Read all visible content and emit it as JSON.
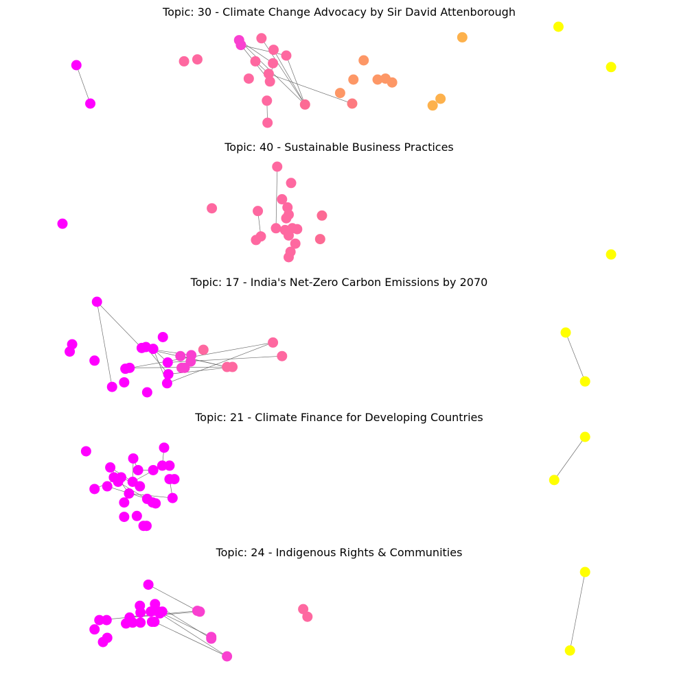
{
  "colors": {
    "magenta": "#ff00ff",
    "pink_magenta": "#f940d0",
    "pink": "#fe68a0",
    "pink_coral": "#fc6a94",
    "coral": "#fd7a80",
    "orange": "#fd9766",
    "light_orange": "#fdb14c",
    "yellow": "#ffff00"
  },
  "chart_data": [
    {
      "type": "scatter",
      "title": "Topic: 30 - Climate Change Advocacy by Sir David Attenborough",
      "xlim": [
        0,
        100
      ],
      "ylim": [
        0,
        100
      ],
      "grid": false,
      "nodes": [
        {
          "id": "a1",
          "x": 6.5,
          "y": 60,
          "color": "magenta"
        },
        {
          "id": "a2",
          "x": 8.8,
          "y": 20,
          "color": "magenta"
        },
        {
          "id": "a3",
          "x": 24.3,
          "y": 64,
          "color": "pink"
        },
        {
          "id": "a4",
          "x": 26.5,
          "y": 66,
          "color": "pink"
        },
        {
          "id": "a5",
          "x": 33.4,
          "y": 86,
          "color": "pink_magenta"
        },
        {
          "id": "a6",
          "x": 33.7,
          "y": 81,
          "color": "pink_magenta"
        },
        {
          "id": "a7",
          "x": 37.1,
          "y": 88,
          "color": "pink"
        },
        {
          "id": "a8",
          "x": 39.1,
          "y": 76,
          "color": "pink"
        },
        {
          "id": "a9",
          "x": 36.1,
          "y": 64,
          "color": "pink"
        },
        {
          "id": "a10",
          "x": 39.0,
          "y": 62,
          "color": "pink"
        },
        {
          "id": "a11",
          "x": 41.2,
          "y": 70,
          "color": "pink"
        },
        {
          "id": "a12",
          "x": 35.0,
          "y": 46,
          "color": "pink"
        },
        {
          "id": "a13",
          "x": 38.3,
          "y": 51,
          "color": "pink"
        },
        {
          "id": "a14",
          "x": 38.5,
          "y": 43,
          "color": "pink"
        },
        {
          "id": "a15",
          "x": 38.0,
          "y": 23,
          "color": "pink"
        },
        {
          "id": "a16",
          "x": 38.1,
          "y": 0,
          "color": "pink"
        },
        {
          "id": "a17",
          "x": 44.3,
          "y": 19,
          "color": "pink_coral"
        },
        {
          "id": "a18",
          "x": 50.1,
          "y": 31,
          "color": "orange"
        },
        {
          "id": "a19",
          "x": 52.1,
          "y": 20,
          "color": "coral"
        },
        {
          "id": "a20",
          "x": 52.3,
          "y": 45,
          "color": "orange"
        },
        {
          "id": "a21",
          "x": 54.0,
          "y": 65,
          "color": "orange"
        },
        {
          "id": "a22",
          "x": 56.3,
          "y": 45,
          "color": "orange"
        },
        {
          "id": "a23",
          "x": 57.6,
          "y": 46,
          "color": "orange"
        },
        {
          "id": "a24",
          "x": 58.7,
          "y": 42,
          "color": "orange"
        },
        {
          "id": "a25",
          "x": 70.3,
          "y": 89,
          "color": "light_orange"
        },
        {
          "id": "a26",
          "x": 65.4,
          "y": 18,
          "color": "light_orange"
        },
        {
          "id": "a27",
          "x": 66.7,
          "y": 25,
          "color": "light_orange"
        },
        {
          "id": "a28",
          "x": 86.2,
          "y": 100,
          "color": "yellow"
        },
        {
          "id": "a29",
          "x": 94.9,
          "y": 58,
          "color": "yellow"
        }
      ],
      "edges": [
        [
          "a1",
          "a2"
        ],
        [
          "a5",
          "a17"
        ],
        [
          "a5",
          "a10"
        ],
        [
          "a6",
          "a11"
        ],
        [
          "a6",
          "a14"
        ],
        [
          "a7",
          "a17"
        ],
        [
          "a8",
          "a17"
        ],
        [
          "a11",
          "a17"
        ],
        [
          "a9",
          "a13"
        ],
        [
          "a10",
          "a14"
        ],
        [
          "a15",
          "a16"
        ],
        [
          "a13",
          "a19"
        ]
      ]
    },
    {
      "type": "scatter",
      "title": "Topic: 40 - Sustainable Business Practices",
      "xlim": [
        0,
        100
      ],
      "ylim": [
        0,
        100
      ],
      "grid": false,
      "nodes": [
        {
          "id": "b1",
          "x": 4.2,
          "y": 37,
          "color": "magenta"
        },
        {
          "id": "b2",
          "x": 28.9,
          "y": 54,
          "color": "pink"
        },
        {
          "id": "b3",
          "x": 39.7,
          "y": 100,
          "color": "pink"
        },
        {
          "id": "b4",
          "x": 42.0,
          "y": 82,
          "color": "pink"
        },
        {
          "id": "b5",
          "x": 40.5,
          "y": 64,
          "color": "pink"
        },
        {
          "id": "b6",
          "x": 41.4,
          "y": 55,
          "color": "pink"
        },
        {
          "id": "b7",
          "x": 36.5,
          "y": 51,
          "color": "pink"
        },
        {
          "id": "b8",
          "x": 41.6,
          "y": 47,
          "color": "pink"
        },
        {
          "id": "b9",
          "x": 41.2,
          "y": 43,
          "color": "pink"
        },
        {
          "id": "b10",
          "x": 39.5,
          "y": 32,
          "color": "pink"
        },
        {
          "id": "b11",
          "x": 42.2,
          "y": 32,
          "color": "pink"
        },
        {
          "id": "b12",
          "x": 43.0,
          "y": 31,
          "color": "pink"
        },
        {
          "id": "b13",
          "x": 41.0,
          "y": 30,
          "color": "pink"
        },
        {
          "id": "b14",
          "x": 41.6,
          "y": 24,
          "color": "pink"
        },
        {
          "id": "b15",
          "x": 36.2,
          "y": 19,
          "color": "pink"
        },
        {
          "id": "b16",
          "x": 37.0,
          "y": 23,
          "color": "pink"
        },
        {
          "id": "b17",
          "x": 42.7,
          "y": 15,
          "color": "pink"
        },
        {
          "id": "b18",
          "x": 41.9,
          "y": 6,
          "color": "pink"
        },
        {
          "id": "b19",
          "x": 41.6,
          "y": 0,
          "color": "pink"
        },
        {
          "id": "b20",
          "x": 47.1,
          "y": 46,
          "color": "pink_coral"
        },
        {
          "id": "b21",
          "x": 46.8,
          "y": 20,
          "color": "pink_coral"
        },
        {
          "id": "b22",
          "x": 94.9,
          "y": 3,
          "color": "yellow"
        }
      ],
      "edges": [
        [
          "b3",
          "b10"
        ],
        [
          "b7",
          "b16"
        ],
        [
          "b6",
          "b9"
        ]
      ]
    },
    {
      "type": "scatter",
      "title": "Topic: 17 - India's Net-Zero Carbon Emissions by 2070",
      "xlim": [
        0,
        100
      ],
      "ylim": [
        0,
        100
      ],
      "grid": false,
      "nodes": [
        {
          "id": "c1",
          "x": 9.9,
          "y": 100,
          "color": "magenta"
        },
        {
          "id": "c2",
          "x": 5.8,
          "y": 53,
          "color": "magenta"
        },
        {
          "id": "c3",
          "x": 5.4,
          "y": 45,
          "color": "magenta"
        },
        {
          "id": "c4",
          "x": 9.5,
          "y": 35,
          "color": "magenta"
        },
        {
          "id": "c5",
          "x": 12.4,
          "y": 6,
          "color": "magenta"
        },
        {
          "id": "c6",
          "x": 14.4,
          "y": 11,
          "color": "magenta"
        },
        {
          "id": "c7",
          "x": 14.6,
          "y": 26,
          "color": "magenta"
        },
        {
          "id": "c8",
          "x": 15.3,
          "y": 27,
          "color": "magenta"
        },
        {
          "id": "c9",
          "x": 17.3,
          "y": 49,
          "color": "magenta"
        },
        {
          "id": "c10",
          "x": 18.0,
          "y": 50,
          "color": "magenta"
        },
        {
          "id": "c11",
          "x": 19.2,
          "y": 48,
          "color": "magenta"
        },
        {
          "id": "c12",
          "x": 18.2,
          "y": 0,
          "color": "magenta"
        },
        {
          "id": "c13",
          "x": 20.8,
          "y": 61,
          "color": "magenta"
        },
        {
          "id": "c14",
          "x": 21.6,
          "y": 33,
          "color": "magenta"
        },
        {
          "id": "c15",
          "x": 21.7,
          "y": 20,
          "color": "magenta"
        },
        {
          "id": "c16",
          "x": 21.5,
          "y": 10,
          "color": "magenta"
        },
        {
          "id": "c17",
          "x": 23.7,
          "y": 40,
          "color": "pink_magenta"
        },
        {
          "id": "c18",
          "x": 23.9,
          "y": 27,
          "color": "pink_magenta"
        },
        {
          "id": "c19",
          "x": 24.4,
          "y": 27,
          "color": "pink_magenta"
        },
        {
          "id": "c20",
          "x": 25.5,
          "y": 41,
          "color": "pink_magenta"
        },
        {
          "id": "c21",
          "x": 25.4,
          "y": 34,
          "color": "pink_magenta"
        },
        {
          "id": "c22",
          "x": 27.5,
          "y": 47,
          "color": "pink"
        },
        {
          "id": "c23",
          "x": 31.4,
          "y": 28,
          "color": "pink"
        },
        {
          "id": "c24",
          "x": 32.3,
          "y": 28,
          "color": "pink"
        },
        {
          "id": "c25",
          "x": 39.0,
          "y": 55,
          "color": "pink"
        },
        {
          "id": "c26",
          "x": 40.5,
          "y": 40,
          "color": "pink"
        },
        {
          "id": "c27",
          "x": 87.4,
          "y": 66,
          "color": "yellow"
        },
        {
          "id": "c28",
          "x": 90.6,
          "y": 12,
          "color": "yellow"
        }
      ],
      "edges": [
        [
          "c1",
          "c9"
        ],
        [
          "c1",
          "c5"
        ],
        [
          "c9",
          "c20"
        ],
        [
          "c9",
          "c23"
        ],
        [
          "c10",
          "c15"
        ],
        [
          "c11",
          "c14"
        ],
        [
          "c11",
          "c16"
        ],
        [
          "c7",
          "c25"
        ],
        [
          "c8",
          "c24"
        ],
        [
          "c14",
          "c26"
        ],
        [
          "c15",
          "c24"
        ],
        [
          "c16",
          "c25"
        ],
        [
          "c17",
          "c23"
        ],
        [
          "c27",
          "c28"
        ]
      ]
    },
    {
      "type": "scatter",
      "title": "Topic: 21 - Climate Finance for Developing Countries",
      "xlim": [
        0,
        100
      ],
      "ylim": [
        0,
        100
      ],
      "grid": false,
      "nodes": [
        {
          "id": "d1",
          "x": 8.1,
          "y": 84,
          "color": "magenta"
        },
        {
          "id": "d2",
          "x": 9.5,
          "y": 42,
          "color": "magenta"
        },
        {
          "id": "d3",
          "x": 11.6,
          "y": 45,
          "color": "magenta"
        },
        {
          "id": "d4",
          "x": 12.1,
          "y": 66,
          "color": "magenta"
        },
        {
          "id": "d5",
          "x": 12.7,
          "y": 55,
          "color": "magenta"
        },
        {
          "id": "d6",
          "x": 13.4,
          "y": 50,
          "color": "magenta"
        },
        {
          "id": "d7",
          "x": 13.9,
          "y": 55,
          "color": "magenta"
        },
        {
          "id": "d8",
          "x": 14.4,
          "y": 27,
          "color": "magenta"
        },
        {
          "id": "d9",
          "x": 14.4,
          "y": 11,
          "color": "magenta"
        },
        {
          "id": "d10",
          "x": 15.2,
          "y": 37,
          "color": "magenta"
        },
        {
          "id": "d11",
          "x": 15.8,
          "y": 50,
          "color": "magenta"
        },
        {
          "id": "d12",
          "x": 15.9,
          "y": 76,
          "color": "magenta"
        },
        {
          "id": "d13",
          "x": 16.5,
          "y": 12,
          "color": "magenta"
        },
        {
          "id": "d14",
          "x": 16.7,
          "y": 63,
          "color": "magenta"
        },
        {
          "id": "d15",
          "x": 17.0,
          "y": 45,
          "color": "magenta"
        },
        {
          "id": "d16",
          "x": 17.6,
          "y": 1,
          "color": "magenta"
        },
        {
          "id": "d17",
          "x": 18.1,
          "y": 1,
          "color": "magenta"
        },
        {
          "id": "d18",
          "x": 18.2,
          "y": 31,
          "color": "magenta"
        },
        {
          "id": "d19",
          "x": 19.1,
          "y": 27,
          "color": "magenta"
        },
        {
          "id": "d20",
          "x": 19.6,
          "y": 26,
          "color": "magenta"
        },
        {
          "id": "d21",
          "x": 19.2,
          "y": 63,
          "color": "magenta"
        },
        {
          "id": "d22",
          "x": 20.7,
          "y": 68,
          "color": "magenta"
        },
        {
          "id": "d23",
          "x": 21.0,
          "y": 88,
          "color": "magenta"
        },
        {
          "id": "d24",
          "x": 21.9,
          "y": 68,
          "color": "magenta"
        },
        {
          "id": "d25",
          "x": 21.9,
          "y": 53,
          "color": "magenta"
        },
        {
          "id": "d26",
          "x": 22.7,
          "y": 53,
          "color": "magenta"
        },
        {
          "id": "d27",
          "x": 22.4,
          "y": 32,
          "color": "magenta"
        },
        {
          "id": "d28",
          "x": 90.6,
          "y": 100,
          "color": "yellow"
        },
        {
          "id": "d29",
          "x": 85.5,
          "y": 52,
          "color": "yellow"
        }
      ],
      "edges": [
        [
          "d2",
          "d7"
        ],
        [
          "d3",
          "d18"
        ],
        [
          "d4",
          "d11"
        ],
        [
          "d4",
          "d10"
        ],
        [
          "d6",
          "d19"
        ],
        [
          "d7",
          "d15"
        ],
        [
          "d12",
          "d11"
        ],
        [
          "d12",
          "d14"
        ],
        [
          "d14",
          "d21"
        ],
        [
          "d11",
          "d22"
        ],
        [
          "d10",
          "d27"
        ],
        [
          "d22",
          "d24"
        ],
        [
          "d23",
          "d22"
        ],
        [
          "d25",
          "d27"
        ],
        [
          "d18",
          "d20"
        ],
        [
          "d28",
          "d29"
        ]
      ]
    },
    {
      "type": "scatter",
      "title": "Topic: 24 - Indigenous Rights & Communities",
      "xlim": [
        0,
        100
      ],
      "ylim": [
        0,
        100
      ],
      "grid": false,
      "nodes": [
        {
          "id": "e1",
          "x": 9.5,
          "y": 32,
          "color": "magenta"
        },
        {
          "id": "e2",
          "x": 10.3,
          "y": 43,
          "color": "magenta"
        },
        {
          "id": "e3",
          "x": 11.5,
          "y": 43,
          "color": "magenta"
        },
        {
          "id": "e4",
          "x": 11.6,
          "y": 22,
          "color": "magenta"
        },
        {
          "id": "e5",
          "x": 10.9,
          "y": 17,
          "color": "magenta"
        },
        {
          "id": "e6",
          "x": 14.7,
          "y": 39,
          "color": "magenta"
        },
        {
          "id": "e7",
          "x": 15.3,
          "y": 46,
          "color": "magenta"
        },
        {
          "id": "e8",
          "x": 15.8,
          "y": 40,
          "color": "magenta"
        },
        {
          "id": "e9",
          "x": 17.1,
          "y": 40,
          "color": "magenta"
        },
        {
          "id": "e10",
          "x": 17.1,
          "y": 52,
          "color": "magenta"
        },
        {
          "id": "e11",
          "x": 17.0,
          "y": 60,
          "color": "magenta"
        },
        {
          "id": "e12",
          "x": 18.4,
          "y": 85,
          "color": "magenta"
        },
        {
          "id": "e13",
          "x": 18.8,
          "y": 53,
          "color": "magenta"
        },
        {
          "id": "e14",
          "x": 19.0,
          "y": 41,
          "color": "magenta"
        },
        {
          "id": "e15",
          "x": 19.4,
          "y": 41,
          "color": "magenta"
        },
        {
          "id": "e16",
          "x": 19.5,
          "y": 62,
          "color": "magenta"
        },
        {
          "id": "e17",
          "x": 19.8,
          "y": 54,
          "color": "magenta"
        },
        {
          "id": "e18",
          "x": 20.3,
          "y": 51,
          "color": "magenta"
        },
        {
          "id": "e19",
          "x": 20.7,
          "y": 53,
          "color": "magenta"
        },
        {
          "id": "e20",
          "x": 26.5,
          "y": 54,
          "color": "pink_magenta"
        },
        {
          "id": "e21",
          "x": 26.9,
          "y": 53,
          "color": "pink_magenta"
        },
        {
          "id": "e22",
          "x": 28.8,
          "y": 23,
          "color": "pink_magenta"
        },
        {
          "id": "e23",
          "x": 28.8,
          "y": 21,
          "color": "pink_magenta"
        },
        {
          "id": "e24",
          "x": 31.4,
          "y": 0,
          "color": "pink_magenta"
        },
        {
          "id": "e25",
          "x": 44.0,
          "y": 56,
          "color": "pink"
        },
        {
          "id": "e26",
          "x": 44.7,
          "y": 47,
          "color": "pink"
        },
        {
          "id": "e27",
          "x": 90.6,
          "y": 100,
          "color": "yellow"
        },
        {
          "id": "e28",
          "x": 88.1,
          "y": 7,
          "color": "yellow"
        }
      ],
      "edges": [
        [
          "e2",
          "e20"
        ],
        [
          "e7",
          "e13"
        ],
        [
          "e7",
          "e21"
        ],
        [
          "e12",
          "e20"
        ],
        [
          "e15",
          "e24"
        ],
        [
          "e16",
          "e23"
        ],
        [
          "e17",
          "e22"
        ],
        [
          "e18",
          "e24"
        ],
        [
          "e27",
          "e28"
        ]
      ]
    }
  ]
}
